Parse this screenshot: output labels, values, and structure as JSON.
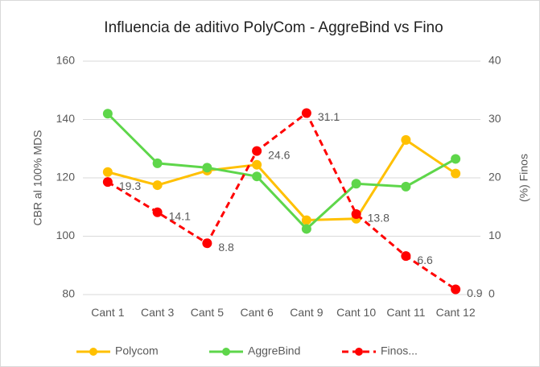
{
  "chart_data": {
    "type": "line",
    "title": "Influencia de aditivo PolyCom - AggreBind vs Fino",
    "y_label": "CBR al 100% MDS",
    "y2_label": "(%) Finos",
    "categories": [
      "Cant 1",
      "Cant 3",
      "Cant 5",
      "Cant 6",
      "Cant 9",
      "Cant 10",
      "Cant 11",
      "Cant 12"
    ],
    "series": [
      {
        "name": "Polycom",
        "color": "#FFC000",
        "values": [
          122,
          117.5,
          122.5,
          124.5,
          105.5,
          106,
          133,
          121.5
        ]
      },
      {
        "name": "AggreBind",
        "color": "#5ED64A",
        "values": [
          142,
          125,
          123.5,
          120.5,
          102.5,
          118,
          117,
          126.5
        ]
      },
      {
        "name": "Finos...",
        "color": "#FF0000",
        "axis": "y2",
        "dashed": true,
        "show_values": true,
        "values": [
          19.3,
          14.1,
          8.8,
          24.6,
          31.1,
          13.8,
          6.6,
          0.9
        ]
      }
    ],
    "ylim": [
      80,
      160
    ],
    "yticks": [
      80,
      100,
      120,
      140,
      160
    ],
    "y2lim": [
      0,
      40
    ],
    "y2ticks": [
      0,
      10,
      20,
      30,
      40
    ],
    "grid": true,
    "legend": "bottom"
  }
}
